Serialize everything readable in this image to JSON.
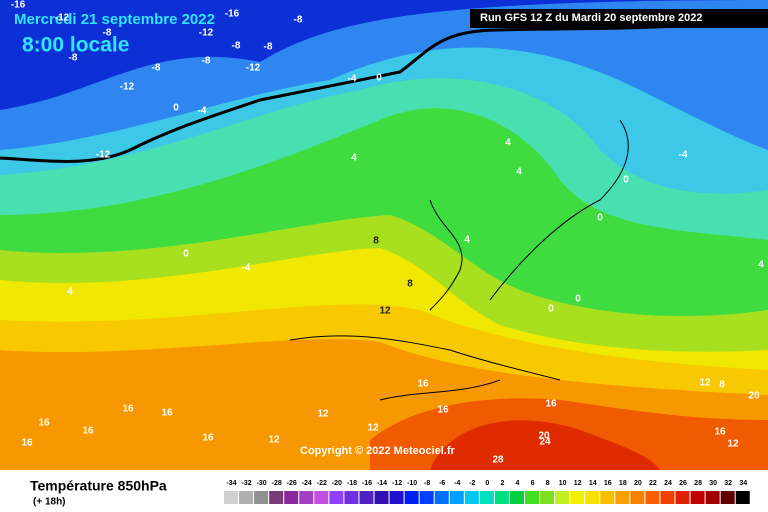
{
  "header": {
    "date": "Mercredi 21 septembre 2022",
    "time": "8:00 locale",
    "run": "Run GFS 12 Z du Mardi 20 septembre 2022"
  },
  "copyright": "Copyright © 2022 Meteociel.fr",
  "footer": {
    "title": "Température 850hPa",
    "lead": "(+ 18h)"
  },
  "legend": {
    "values": [
      -34,
      -32,
      -30,
      -28,
      -26,
      -24,
      -22,
      -20,
      -18,
      -16,
      -14,
      -12,
      -10,
      -8,
      -6,
      -4,
      -2,
      0,
      2,
      4,
      6,
      8,
      10,
      12,
      14,
      16,
      18,
      20,
      22,
      24,
      26,
      28,
      30,
      32,
      34
    ]
  },
  "contour_labels": [
    -16,
    -16,
    -12,
    -8,
    -12,
    -8,
    -8,
    -8,
    -8,
    -8,
    -8,
    -12,
    -12,
    -4,
    0,
    0,
    -4,
    -12,
    4,
    4,
    4,
    0,
    0,
    -4,
    4,
    0,
    -4,
    4,
    8,
    4,
    8,
    12,
    0,
    0,
    16,
    16,
    16,
    16,
    16,
    16,
    12,
    12,
    12,
    16,
    16,
    20,
    24,
    28,
    20,
    16,
    12,
    12,
    8,
    16
  ]
}
